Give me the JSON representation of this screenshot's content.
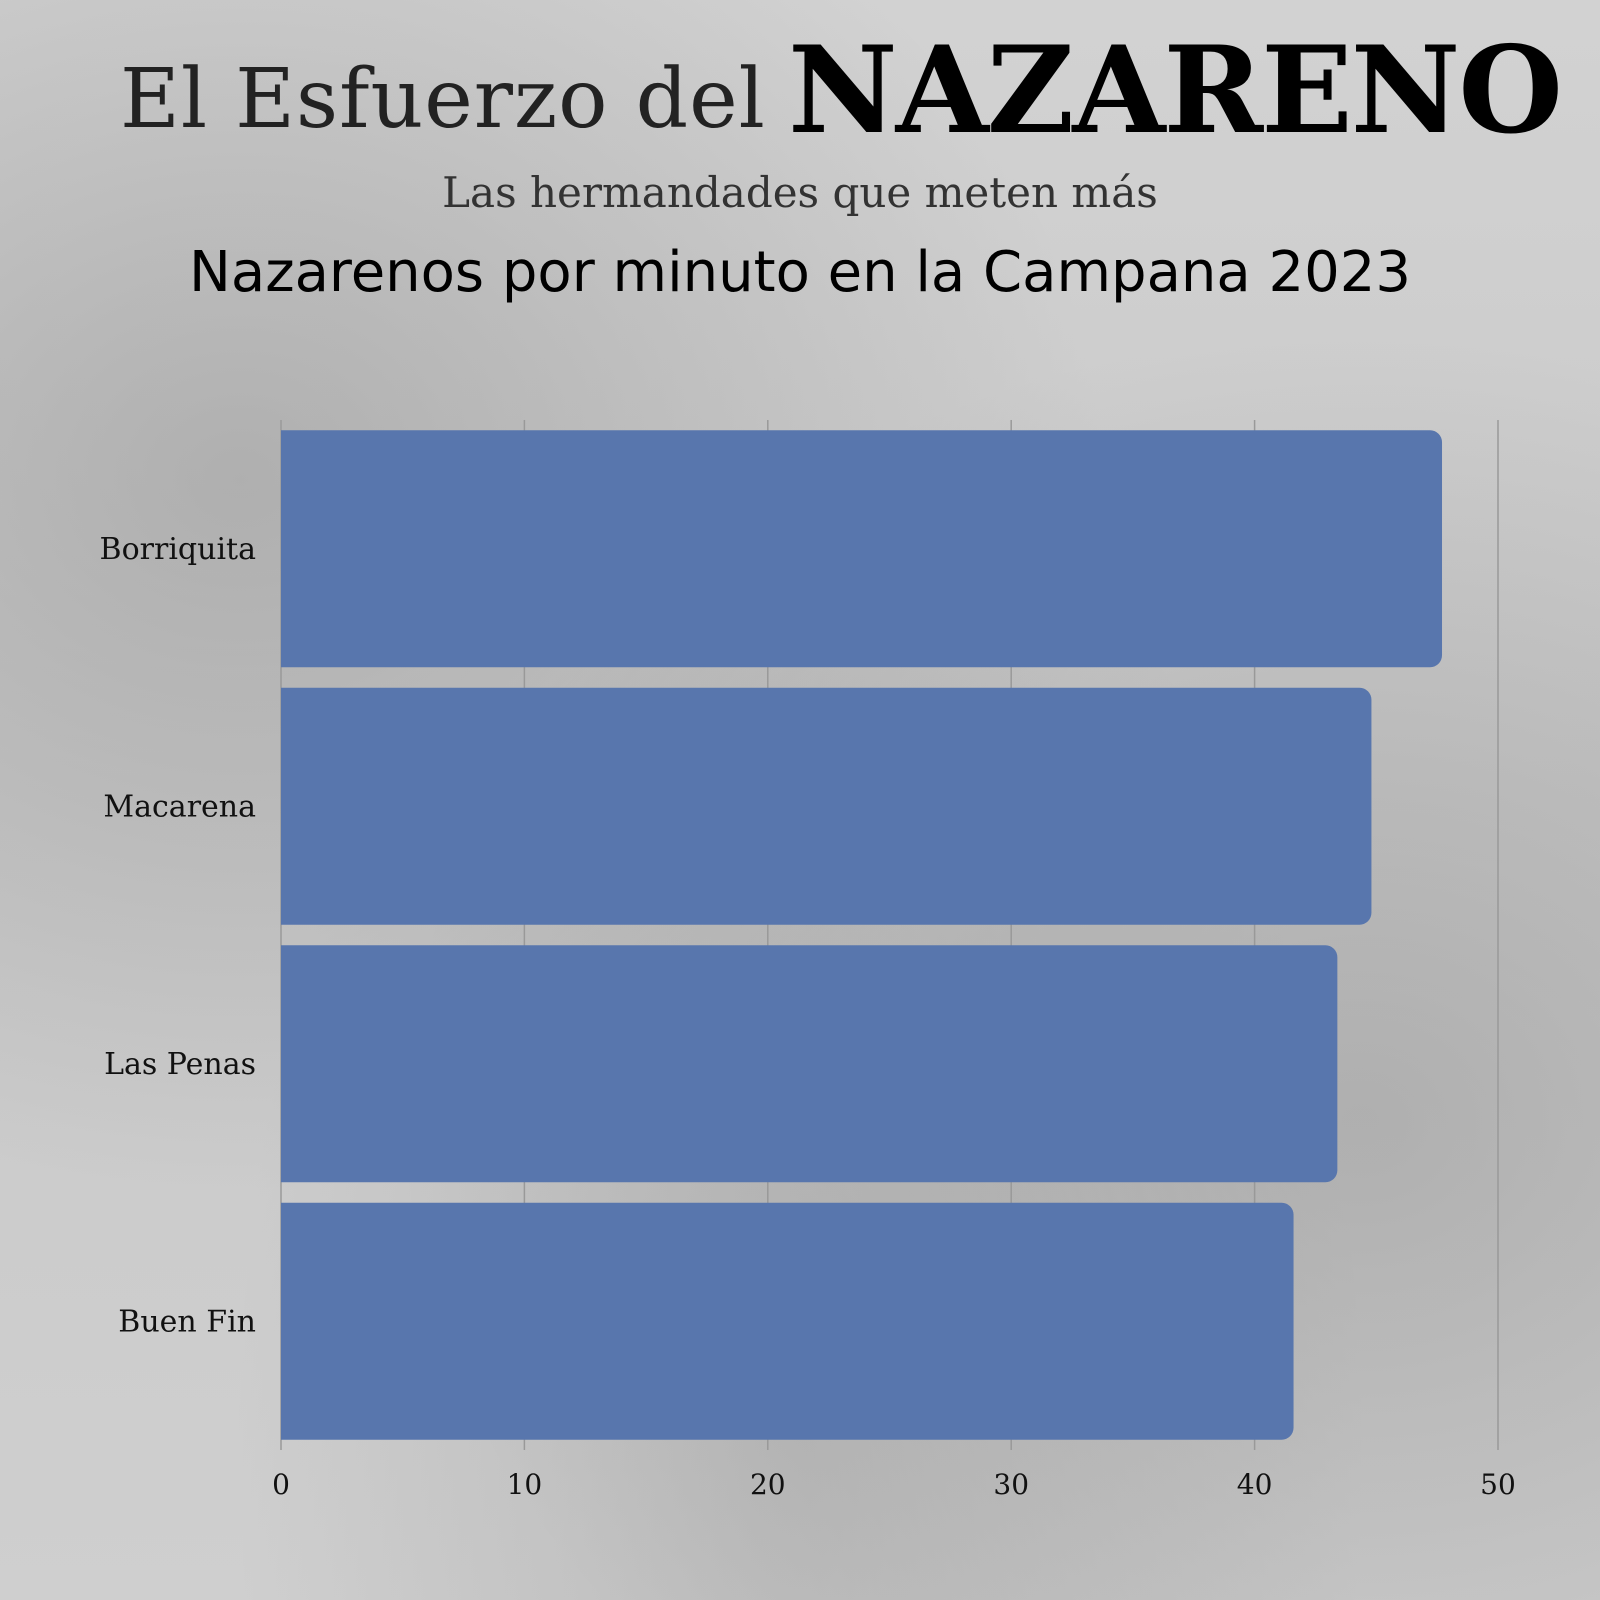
{
  "header": {
    "title_light": "El Esfuerzo del",
    "title_bold": "NAZARENO",
    "subtitle": "Las hermandades que meten más"
  },
  "chart_data": {
    "type": "bar",
    "orientation": "horizontal",
    "title": "Nazarenos por minuto en la Campana 2023",
    "categories": [
      "Borriquita",
      "Macarena",
      "Las Penas",
      "Buen Fin"
    ],
    "values": [
      47.7,
      44.8,
      43.4,
      41.6
    ],
    "xlim": [
      0,
      50
    ],
    "xticks": [
      "0",
      "10",
      "20",
      "30",
      "40",
      "50"
    ],
    "grid": true,
    "bar_color": "#5876ad"
  }
}
